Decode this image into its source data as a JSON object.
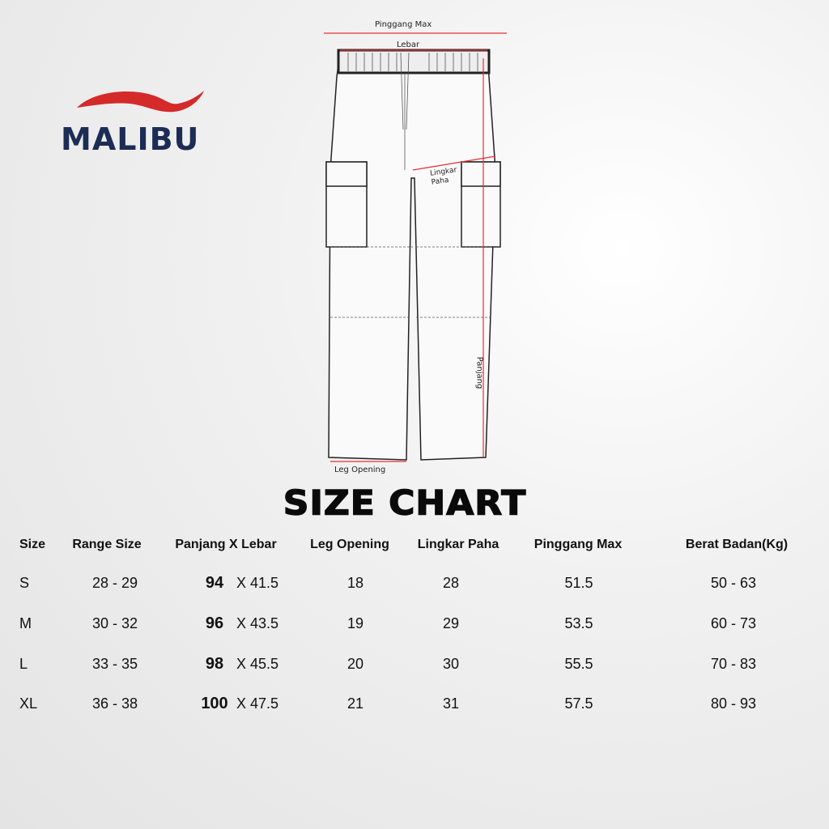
{
  "brand": {
    "name": "MALIBU",
    "colors": {
      "swoosh": "#d42a2a",
      "text": "#1c2c55"
    }
  },
  "diagram": {
    "labels": {
      "pinggang_max": "Pinggang Max",
      "lebar": "Lebar",
      "lingkar_paha": "Lingkar Paha",
      "panjang": "Panjang",
      "leg_opening": "Leg Opening"
    },
    "measure_line_color": "#e53030"
  },
  "title": "SIZE CHART",
  "table": {
    "headers": [
      "Size",
      "Range Size",
      "Panjang X Lebar",
      "Leg Opening",
      "Lingkar Paha",
      "Pinggang Max",
      "Berat Badan(Kg)"
    ],
    "rows": [
      {
        "size": "S",
        "range": "28 - 29",
        "panjang": "94",
        "lebar": "X 41.5",
        "leg": "18",
        "paha": "28",
        "pinggang": "51.5",
        "berat": "50 - 63"
      },
      {
        "size": "M",
        "range": "30 - 32",
        "panjang": "96",
        "lebar": "X 43.5",
        "leg": "19",
        "paha": "29",
        "pinggang": "53.5",
        "berat": "60 - 73"
      },
      {
        "size": "L",
        "range": "33 - 35",
        "panjang": "98",
        "lebar": "X 45.5",
        "leg": "20",
        "paha": "30",
        "pinggang": "55.5",
        "berat": "70 - 83"
      },
      {
        "size": "XL",
        "range": "36 - 38",
        "panjang": "100",
        "lebar": "X 47.5",
        "leg": "21",
        "paha": "31",
        "pinggang": "57.5",
        "berat": "80 - 93"
      }
    ]
  }
}
